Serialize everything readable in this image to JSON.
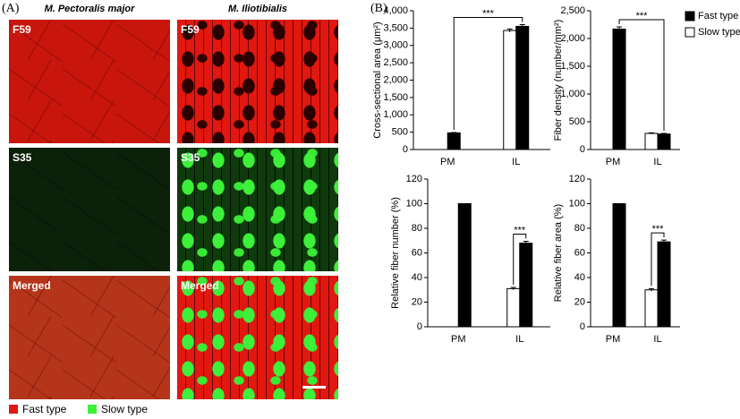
{
  "panel_a": {
    "label": "(A)",
    "columns": [
      "M. Pectoralis major",
      "M. Iliotibialis"
    ],
    "rows": [
      "F59",
      "S35",
      "Merged"
    ],
    "legend": [
      "Fast type",
      "Slow type"
    ]
  },
  "panel_b": {
    "label": "(B)"
  },
  "chart_data": [
    {
      "type": "bar",
      "ylabel": "Cross-sectional area (μm²)",
      "categories": [
        "PM",
        "IL"
      ],
      "series": [
        {
          "color": "#000000",
          "values": [
            480,
            3550
          ],
          "errors": [
            10,
            50
          ]
        },
        {
          "color": "#ffffff",
          "values": [
            null,
            3430
          ],
          "errors": [
            null,
            45
          ]
        }
      ],
      "ylim": [
        0,
        4000
      ],
      "yticks": [
        0,
        500,
        {
          "value": 1000,
          "label": "1,000"
        },
        {
          "value": 1500,
          "label": "1,500"
        },
        {
          "value": 2000,
          "label": "2,000"
        },
        {
          "value": 2500,
          "label": "2,500"
        },
        {
          "value": 3000,
          "label": "3,000"
        },
        {
          "value": 3500,
          "label": "3,500"
        },
        {
          "value": 4000,
          "label": "4,000"
        }
      ],
      "annotation": "***"
    },
    {
      "type": "bar",
      "ylabel": "Fiber density (number/mm²)",
      "categories": [
        "PM",
        "IL"
      ],
      "series": [
        {
          "name": "Fast type",
          "color": "#000000",
          "values": [
            2170,
            280
          ],
          "errors": [
            40,
            10
          ]
        },
        {
          "name": "Slow type",
          "color": "#ffffff",
          "values": [
            null,
            290
          ],
          "errors": [
            null,
            10
          ]
        }
      ],
      "ylim": [
        0,
        2500
      ],
      "yticks": [
        0,
        500,
        {
          "value": 1000,
          "label": "1,000"
        },
        {
          "value": 1500,
          "label": "1,500"
        },
        {
          "value": 2000,
          "label": "2,000"
        },
        {
          "value": 2500,
          "label": "2,500"
        }
      ],
      "annotation": "***",
      "legend": "right"
    },
    {
      "type": "bar",
      "ylabel": "Relative fiber number (%)",
      "categories": [
        "PM",
        "IL"
      ],
      "series": [
        {
          "color": "#000000",
          "values": [
            100,
            68
          ],
          "errors": [
            null,
            1.5
          ]
        },
        {
          "color": "#ffffff",
          "values": [
            null,
            31
          ],
          "errors": [
            null,
            1
          ]
        }
      ],
      "ylim": [
        0,
        120
      ],
      "yticks": [
        0,
        20,
        40,
        60,
        80,
        100,
        120
      ],
      "annotation": "***"
    },
    {
      "type": "bar",
      "ylabel": "Relative fiber area (%)",
      "categories": [
        "PM",
        "IL"
      ],
      "series": [
        {
          "color": "#000000",
          "values": [
            100,
            69
          ],
          "errors": [
            null,
            1.5
          ]
        },
        {
          "color": "#ffffff",
          "values": [
            null,
            30
          ],
          "errors": [
            null,
            1
          ]
        }
      ],
      "ylim": [
        0,
        120
      ],
      "yticks": [
        0,
        20,
        40,
        60,
        80,
        100,
        120
      ],
      "annotation": "***"
    }
  ]
}
